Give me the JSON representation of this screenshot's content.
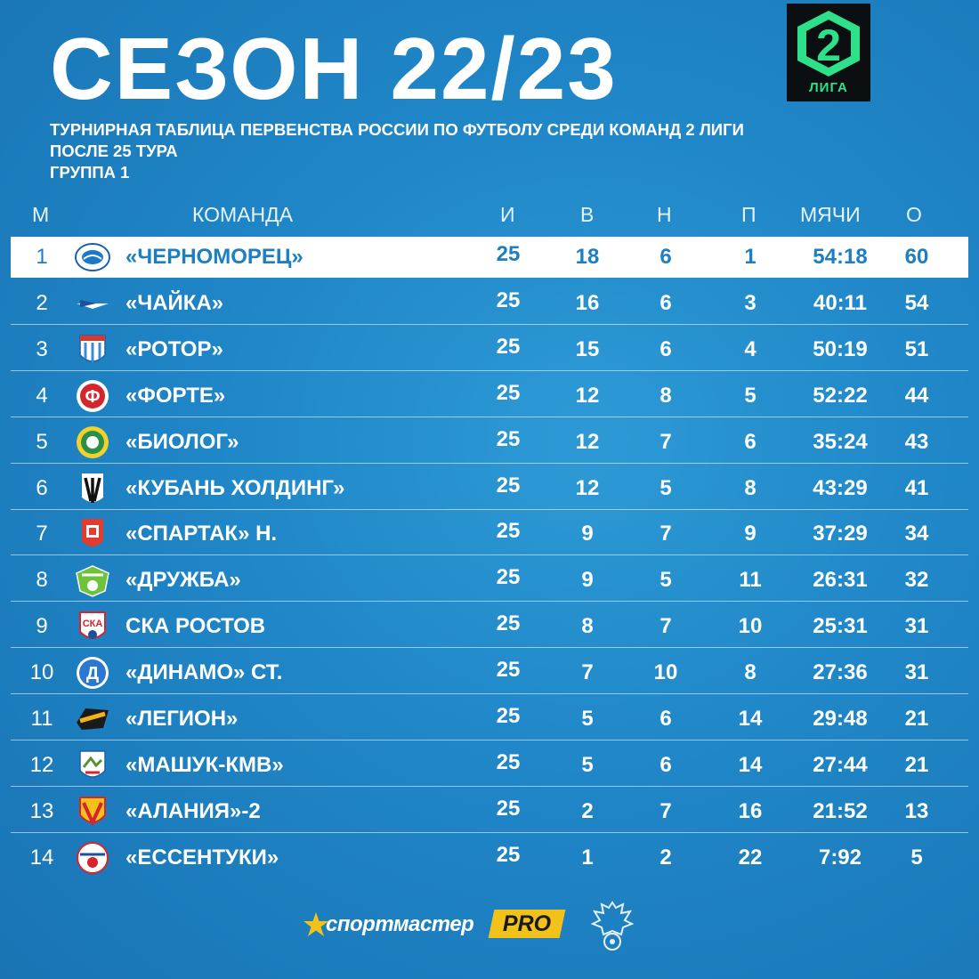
{
  "header": {
    "title": "СЕЗОН 22/23",
    "logo_number": "2",
    "logo_word": "ЛИГА",
    "subtitle_lines": [
      "ТУРНИРНАЯ ТАБЛИЦА ПЕРВЕНСТВА РОССИИ ПО ФУТБОЛУ СРЕДИ КОМАНД 2 ЛИГИ",
      "ПОСЛЕ 25 ТУРА",
      "ГРУППА 1"
    ]
  },
  "table": {
    "columns": [
      "М",
      "КОМАНДА",
      "И",
      "В",
      "Н",
      "П",
      "МЯЧИ",
      "О"
    ],
    "rows": [
      {
        "pos": "1",
        "team": "«ЧЕРНОМОРЕЦ»",
        "played": "25",
        "won": "18",
        "drawn": "6",
        "lost": "1",
        "goals": "54:18",
        "points": "60",
        "crest": "chernomorets-crest-icon",
        "highlighted": true
      },
      {
        "pos": "2",
        "team": "«ЧАЙКА»",
        "played": "25",
        "won": "16",
        "drawn": "6",
        "lost": "3",
        "goals": "40:11",
        "points": "54",
        "crest": "chayka-crest-icon",
        "highlighted": false
      },
      {
        "pos": "3",
        "team": "«РОТОР»",
        "played": "25",
        "won": "15",
        "drawn": "6",
        "lost": "4",
        "goals": "50:19",
        "points": "51",
        "crest": "rotor-crest-icon",
        "highlighted": false
      },
      {
        "pos": "4",
        "team": "«ФОРТЕ»",
        "played": "25",
        "won": "12",
        "drawn": "8",
        "lost": "5",
        "goals": "52:22",
        "points": "44",
        "crest": "forte-crest-icon",
        "highlighted": false
      },
      {
        "pos": "5",
        "team": "«БИОЛОГ»",
        "played": "25",
        "won": "12",
        "drawn": "7",
        "lost": "6",
        "goals": "35:24",
        "points": "43",
        "crest": "biolog-crest-icon",
        "highlighted": false
      },
      {
        "pos": "6",
        "team": "«КУБАНЬ ХОЛДИНГ»",
        "played": "25",
        "won": "12",
        "drawn": "5",
        "lost": "8",
        "goals": "43:29",
        "points": "41",
        "crest": "kuban-holding-crest-icon",
        "highlighted": false
      },
      {
        "pos": "7",
        "team": "«СПАРТАК» Н.",
        "played": "25",
        "won": "9",
        "drawn": "7",
        "lost": "9",
        "goals": "37:29",
        "points": "34",
        "crest": "spartak-crest-icon",
        "highlighted": false
      },
      {
        "pos": "8",
        "team": "«ДРУЖБА»",
        "played": "25",
        "won": "9",
        "drawn": "5",
        "lost": "11",
        "goals": "26:31",
        "points": "32",
        "crest": "druzhba-crest-icon",
        "highlighted": false
      },
      {
        "pos": "9",
        "team": "СКА РОСТОВ",
        "played": "25",
        "won": "8",
        "drawn": "7",
        "lost": "10",
        "goals": "25:31",
        "points": "31",
        "crest": "ska-rostov-crest-icon",
        "highlighted": false
      },
      {
        "pos": "10",
        "team": "«ДИНАМО» СТ.",
        "played": "25",
        "won": "7",
        "drawn": "10",
        "lost": "8",
        "goals": "27:36",
        "points": "31",
        "crest": "dinamo-crest-icon",
        "highlighted": false
      },
      {
        "pos": "11",
        "team": "«ЛЕГИОН»",
        "played": "25",
        "won": "5",
        "drawn": "6",
        "lost": "14",
        "goals": "29:48",
        "points": "21",
        "crest": "legion-crest-icon",
        "highlighted": false
      },
      {
        "pos": "12",
        "team": "«МАШУК-КМВ»",
        "played": "25",
        "won": "5",
        "drawn": "6",
        "lost": "14",
        "goals": "27:44",
        "points": "21",
        "crest": "mashuk-crest-icon",
        "highlighted": false
      },
      {
        "pos": "13",
        "team": "«АЛАНИЯ»-2",
        "played": "25",
        "won": "2",
        "drawn": "7",
        "lost": "16",
        "goals": "21:52",
        "points": "13",
        "crest": "alania-crest-icon",
        "highlighted": false
      },
      {
        "pos": "14",
        "team": "«ЕССЕНТУКИ»",
        "played": "25",
        "won": "1",
        "drawn": "2",
        "lost": "22",
        "goals": "7:92",
        "points": "5",
        "crest": "essentuki-crest-icon",
        "highlighted": false
      }
    ]
  },
  "footer": {
    "sponsor_name": "спортмастер",
    "sponsor_suffix": "PRO",
    "emblem": "rfs-eagle-emblem-icon"
  },
  "colors": {
    "background": "#1f86c7",
    "highlight_row": "#ffffff",
    "highlight_text": "#1e7fc0",
    "league_green": "#2fe08a",
    "sponsor_yellow": "#f2c21a"
  }
}
